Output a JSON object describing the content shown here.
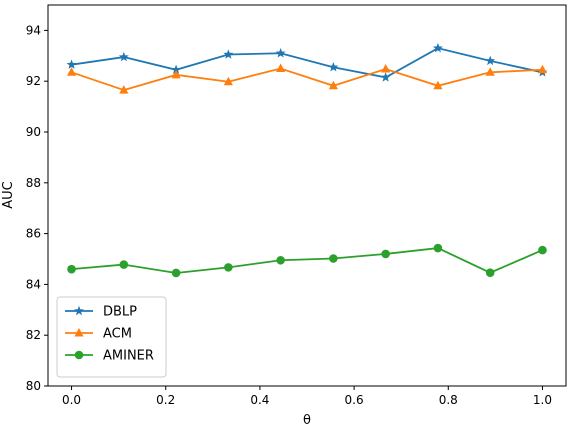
{
  "chart_data": {
    "type": "line",
    "title": "",
    "xlabel": "θ",
    "ylabel": "AUC",
    "xlim": [
      -0.05,
      1.05
    ],
    "ylim": [
      80,
      95
    ],
    "x_ticks": [
      0.0,
      0.2,
      0.4,
      0.6,
      0.8,
      1.0
    ],
    "x_tick_labels": [
      "0.0",
      "0.2",
      "0.4",
      "0.6",
      "0.8",
      "1.0"
    ],
    "y_ticks": [
      80,
      82,
      84,
      86,
      88,
      90,
      92,
      94
    ],
    "y_tick_labels": [
      "80",
      "82",
      "84",
      "86",
      "88",
      "90",
      "92",
      "94"
    ],
    "grid": false,
    "legend_position": "lower-left",
    "x": [
      0.0,
      0.111,
      0.222,
      0.333,
      0.444,
      0.556,
      0.667,
      0.778,
      0.889,
      1.0
    ],
    "series": [
      {
        "name": "DBLP",
        "marker": "star",
        "color": "#1f77b4",
        "values": [
          92.65,
          92.95,
          92.45,
          93.05,
          93.1,
          92.55,
          92.15,
          93.3,
          92.8,
          92.35
        ]
      },
      {
        "name": "ACM",
        "marker": "triangle",
        "color": "#ff7f0e",
        "values": [
          92.35,
          91.65,
          92.25,
          91.98,
          92.5,
          91.82,
          92.48,
          91.82,
          92.35,
          92.45
        ]
      },
      {
        "name": "AMINER",
        "marker": "circle",
        "color": "#2ca02c",
        "values": [
          84.6,
          84.78,
          84.45,
          84.67,
          84.95,
          85.02,
          85.2,
          85.43,
          84.46,
          85.35
        ]
      }
    ]
  }
}
